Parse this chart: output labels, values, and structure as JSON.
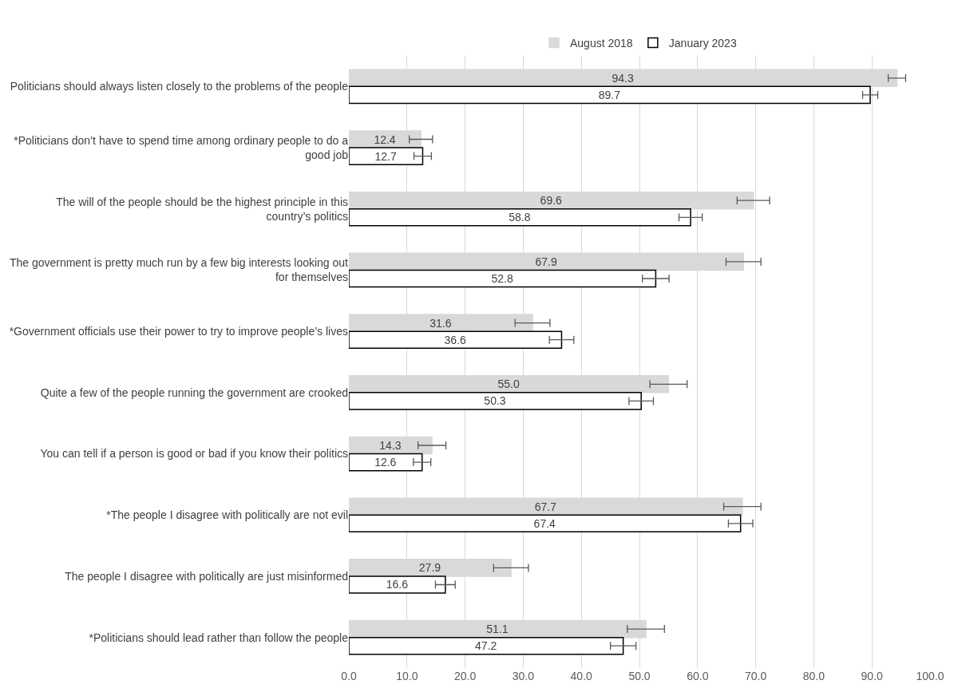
{
  "chart_data": {
    "type": "bar",
    "orientation": "horizontal",
    "categories": [
      "Politicians should always listen closely to the problems of the people",
      "*Politicians don’t have to spend time among ordinary people to do a good job",
      "The will of the people should be the highest principle in this country’s politics",
      "The government is pretty much run by a few big interests looking out for themselves",
      "*Government officials use their power to try to improve people’s lives",
      "Quite a few of the people running the government are crooked",
      "You can tell if a person is good or bad if you know their politics",
      "*The people I disagree with politically are not evil",
      "The people I disagree with politically are just misinformed",
      "*Politicians should lead rather than follow the people"
    ],
    "series": [
      {
        "name": "August 2018",
        "color": "#d9d9d9",
        "values": [
          94.3,
          12.4,
          69.6,
          67.9,
          31.6,
          55.0,
          14.3,
          67.7,
          27.9,
          51.1
        ],
        "errors": [
          1.5,
          2.0,
          2.8,
          3.0,
          3.0,
          3.2,
          2.4,
          3.2,
          3.0,
          3.2
        ],
        "value_labels": [
          "94.3",
          "12.4",
          "69.6",
          "67.9",
          "31.6",
          "55.0",
          "14.3",
          "67.7",
          "27.9",
          "51.1"
        ]
      },
      {
        "name": "January 2023",
        "color": "#ffffff",
        "values": [
          89.7,
          12.7,
          58.8,
          52.8,
          36.6,
          50.3,
          12.6,
          67.4,
          16.6,
          47.2
        ],
        "errors": [
          1.3,
          1.5,
          2.0,
          2.3,
          2.1,
          2.1,
          1.5,
          2.1,
          1.7,
          2.2
        ],
        "value_labels": [
          "89.7",
          "12.7",
          "58.8",
          "52.8",
          "36.6",
          "50.3",
          "12.6",
          "67.4",
          "16.6",
          "47.2"
        ]
      }
    ],
    "xlim": [
      0,
      100
    ],
    "xticks": [
      {
        "value": 0,
        "label": "0.0"
      },
      {
        "value": 10,
        "label": "10.0"
      },
      {
        "value": 20,
        "label": "20.0"
      },
      {
        "value": 30,
        "label": "30.0"
      },
      {
        "value": 40,
        "label": "40.0"
      },
      {
        "value": 50,
        "label": "50.0"
      },
      {
        "value": 60,
        "label": "60.0"
      },
      {
        "value": 70,
        "label": "70.0"
      },
      {
        "value": 80,
        "label": "80.0"
      },
      {
        "value": 90,
        "label": "90.0"
      },
      {
        "value": 100,
        "label": "100.0"
      }
    ],
    "grid": "x",
    "legend": "top"
  }
}
